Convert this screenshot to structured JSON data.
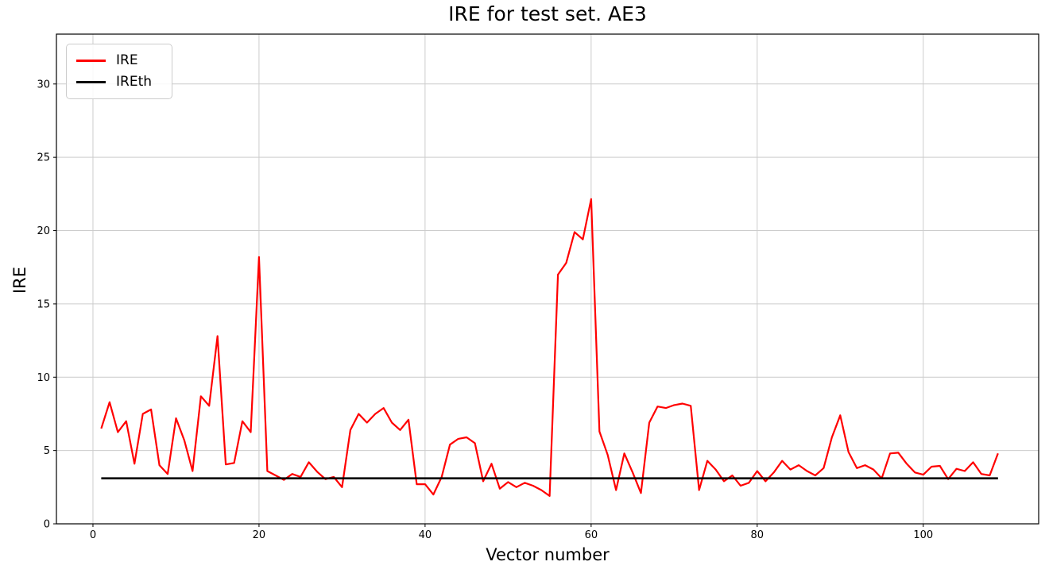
{
  "figure": {
    "title": "IRE for test set. AE3",
    "xlabel": "Vector number",
    "ylabel": "IRE"
  },
  "legend": {
    "position": "upper left",
    "items": [
      {
        "label": "IRE",
        "color": "#ff0000"
      },
      {
        "label": "IREth",
        "color": "#000000"
      }
    ]
  },
  "chart_data": {
    "type": "line",
    "title": "IRE for test set. AE3",
    "xlabel": "Vector number",
    "ylabel": "IRE",
    "xlim": [
      -4.4,
      113.9
    ],
    "ylim": [
      0,
      33.4
    ],
    "xticks": [
      0,
      20,
      40,
      60,
      80,
      100
    ],
    "yticks": [
      0,
      5,
      10,
      15,
      20,
      25,
      30
    ],
    "grid": true,
    "grid_color": "#cccccc",
    "axis_color": "#000000",
    "legend_position": "upper left",
    "series": [
      {
        "name": "IRE",
        "color": "#ff0000",
        "line_width": 2.2,
        "x": [
          1,
          2,
          3,
          4,
          5,
          6,
          7,
          8,
          9,
          10,
          11,
          12,
          13,
          14,
          15,
          16,
          17,
          18,
          19,
          20,
          21,
          22,
          23,
          24,
          25,
          26,
          27,
          28,
          29,
          30,
          31,
          32,
          33,
          34,
          35,
          36,
          37,
          38,
          39,
          40,
          41,
          42,
          43,
          44,
          45,
          46,
          47,
          48,
          49,
          50,
          51,
          52,
          53,
          54,
          55,
          56,
          57,
          58,
          59,
          60,
          61,
          62,
          63,
          64,
          65,
          66,
          67,
          68,
          69,
          70,
          71,
          72,
          73,
          74,
          75,
          76,
          77,
          78,
          79,
          80,
          81,
          82,
          83,
          84,
          85,
          86,
          87,
          88,
          89,
          90,
          91,
          92,
          93,
          94,
          95,
          96,
          97,
          98,
          99,
          100,
          101,
          102,
          103,
          104,
          105,
          106,
          107,
          108,
          109
        ],
        "y": [
          6.5,
          8.3,
          6.25,
          7.0,
          4.1,
          7.5,
          7.8,
          4.0,
          3.4,
          7.2,
          5.7,
          3.6,
          8.7,
          8.05,
          12.8,
          4.05,
          4.15,
          7.0,
          6.25,
          18.2,
          3.6,
          3.3,
          3.0,
          3.4,
          3.2,
          4.2,
          3.55,
          3.05,
          3.2,
          2.5,
          6.4,
          7.5,
          6.9,
          7.5,
          7.9,
          6.9,
          6.4,
          7.1,
          2.7,
          2.7,
          2.0,
          3.2,
          5.4,
          5.8,
          5.9,
          5.5,
          2.9,
          4.1,
          2.4,
          2.85,
          2.5,
          2.8,
          2.6,
          2.3,
          1.9,
          17.0,
          17.8,
          19.9,
          19.4,
          22.15,
          6.3,
          4.7,
          2.3,
          4.8,
          3.5,
          2.1,
          6.9,
          8.0,
          7.9,
          8.1,
          8.2,
          8.05,
          2.3,
          4.3,
          3.7,
          2.9,
          3.3,
          2.6,
          2.8,
          3.6,
          2.9,
          3.5,
          4.3,
          3.7,
          4.0,
          3.6,
          3.3,
          3.8,
          5.9,
          7.4,
          4.9,
          3.8,
          4.0,
          3.7,
          3.1,
          4.8,
          4.85,
          4.1,
          3.5,
          3.35,
          3.9,
          3.95,
          3.05,
          3.75,
          3.6,
          4.2,
          3.4,
          3.3,
          4.8
        ]
      },
      {
        "name": "IREth",
        "color": "#000000",
        "line_width": 2.6,
        "x": [
          1,
          109
        ],
        "y": [
          3.1,
          3.1
        ]
      }
    ]
  }
}
